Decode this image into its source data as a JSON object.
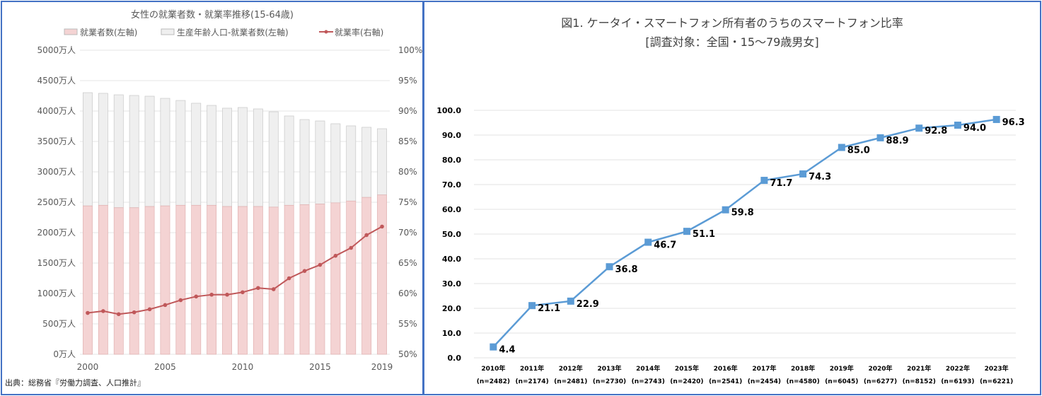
{
  "chart_data": [
    {
      "type": "bar",
      "title": "女性の就業者数・就業率推移(15-64歳)",
      "legend": [
        "就業者数(左軸)",
        "生産年齢人口-就業者数(左軸)",
        "就業率(右軸)"
      ],
      "legend_placement": "top",
      "x": [
        2000,
        2001,
        2002,
        2003,
        2004,
        2005,
        2006,
        2007,
        2008,
        2009,
        2010,
        2011,
        2012,
        2013,
        2014,
        2015,
        2016,
        2017,
        2018,
        2019
      ],
      "x_tick_labels": [
        "2000",
        "2005",
        "2010",
        "2015",
        "2019"
      ],
      "y_left_ticks": [
        "0万人",
        "500万人",
        "1000万人",
        "1500万人",
        "2000万人",
        "2500万人",
        "3000万人",
        "3500万人",
        "4000万人",
        "4500万人",
        "5000万人"
      ],
      "y_right_ticks": [
        "50%",
        "55%",
        "60%",
        "65%",
        "70%",
        "75%",
        "80%",
        "85%",
        "90%",
        "95%",
        "100%"
      ],
      "ylim_left": [
        0,
        5000
      ],
      "ylim_right": [
        50,
        100
      ],
      "series": [
        {
          "name": "就業者数(左軸)",
          "axis": "left",
          "kind": "stacked-bar",
          "color": "#f4d3d3",
          "values": [
            2440,
            2450,
            2410,
            2410,
            2430,
            2440,
            2450,
            2450,
            2450,
            2430,
            2430,
            2430,
            2420,
            2450,
            2460,
            2470,
            2490,
            2520,
            2580,
            2620
          ]
        },
        {
          "name": "生産年齢人口-就業者数(左軸)",
          "axis": "left",
          "kind": "stacked-bar",
          "color": "#efefef",
          "values": [
            1862,
            1841,
            1857,
            1846,
            1814,
            1769,
            1724,
            1678,
            1643,
            1617,
            1628,
            1605,
            1568,
            1469,
            1400,
            1367,
            1301,
            1236,
            1153,
            1089
          ]
        },
        {
          "name": "就業率(右軸)",
          "axis": "right",
          "kind": "line",
          "color": "#c0585a",
          "values": [
            56.8,
            57.1,
            56.6,
            56.9,
            57.4,
            58.1,
            58.9,
            59.5,
            59.8,
            59.8,
            60.2,
            60.9,
            60.7,
            62.5,
            63.7,
            64.7,
            66.2,
            67.5,
            69.6,
            71.0
          ]
        }
      ],
      "source": "出典：総務省『労働力調査、人口推計』"
    },
    {
      "type": "line",
      "title": "図1. ケータイ・スマートフォン所有者のうちのスマートフォン比率",
      "subtitle": "[調査対象：全国・15～79歳男女]",
      "categories": [
        "2010年",
        "2011年",
        "2012年",
        "2013年",
        "2014年",
        "2015年",
        "2016年",
        "2017年",
        "2018年",
        "2019年",
        "2020年",
        "2021年",
        "2022年",
        "2023年"
      ],
      "sample_sizes": [
        "(n=2482)",
        "(n=2174)",
        "(n=2481)",
        "(n=2730)",
        "(n=2743)",
        "(n=2420)",
        "(n=2541)",
        "(n=2454)",
        "(n=4580)",
        "(n=6045)",
        "(n=6277)",
        "(n=8152)",
        "(n=6193)",
        "(n=6221)"
      ],
      "values": [
        4.4,
        21.1,
        22.9,
        36.8,
        46.7,
        51.1,
        59.8,
        71.7,
        74.3,
        85.0,
        88.9,
        92.8,
        94.0,
        96.3
      ],
      "data_labels": [
        "4.4",
        "21.1",
        "22.9",
        "36.8",
        "46.7",
        "51.1",
        "59.8",
        "71.7",
        "74.3",
        "85.0",
        "88.9",
        "92.8",
        "94.0",
        "96.3"
      ],
      "y_ticks": [
        "0.0",
        "10.0",
        "20.0",
        "30.0",
        "40.0",
        "50.0",
        "60.0",
        "70.0",
        "80.0",
        "90.0",
        "100.0"
      ],
      "ylim": [
        0,
        100
      ],
      "color": "#5b9bd5",
      "grid": true
    }
  ]
}
